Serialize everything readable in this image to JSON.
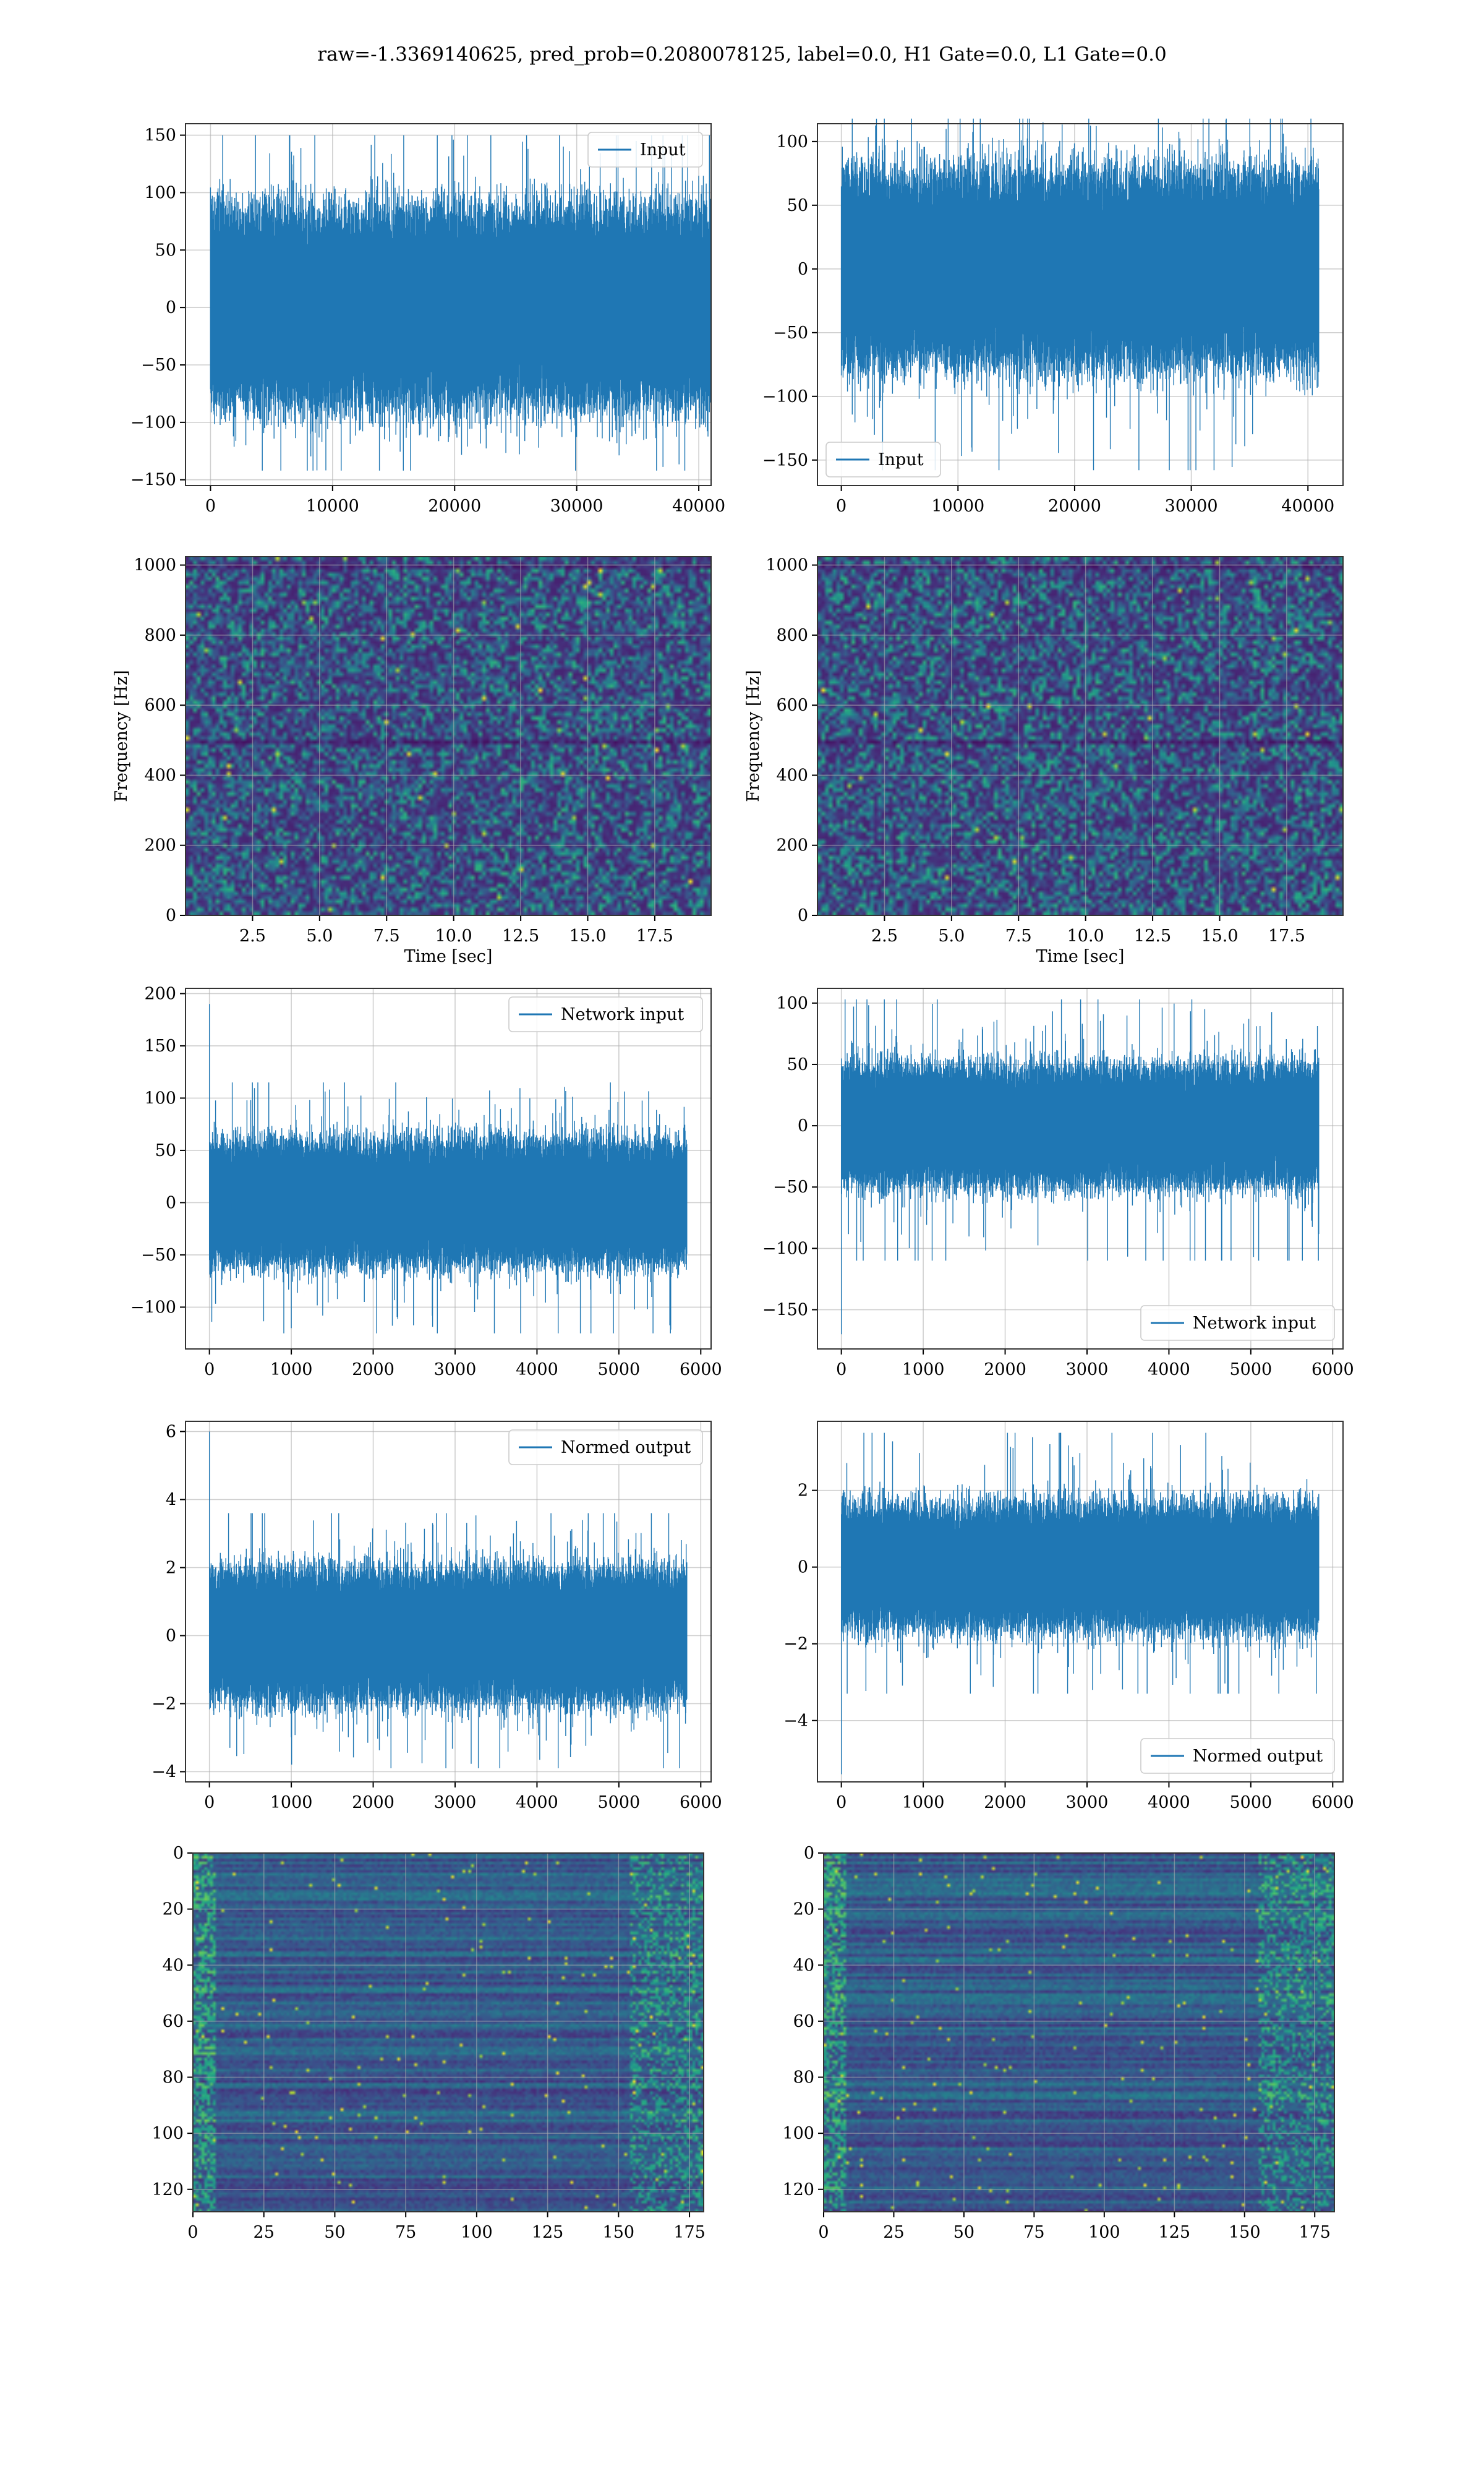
{
  "figure": {
    "title": "raw=-1.3369140625, pred_prob=0.2080078125, label=0.0, H1 Gate=0.0, L1 Gate=0.0",
    "colors": {
      "line": "#1f77b4",
      "grid": "#b0b0b0",
      "viridis_low": "#440154",
      "viridis_mid": "#21918c",
      "viridis_high": "#fde725"
    }
  },
  "chart_data": [
    {
      "type": "line",
      "id": "h1-input",
      "legend": "Input",
      "legend_loc": "upper right",
      "grid": true,
      "n": 40960,
      "xlim": [
        -2048,
        41008
      ],
      "ylim": [
        -155,
        160
      ],
      "xticks": [
        0,
        10000,
        20000,
        30000,
        40000
      ],
      "yticks": [
        -150,
        -100,
        -50,
        0,
        50,
        100,
        150
      ],
      "envelope": {
        "typical_low": -80,
        "typical_high": 80,
        "max": 150,
        "min": -142,
        "start_spike": null
      }
    },
    {
      "type": "line",
      "id": "l1-input",
      "legend": "Input",
      "legend_loc": "lower left",
      "grid": true,
      "n": 40960,
      "xlim": [
        -2048,
        43008
      ],
      "ylim": [
        -170,
        114
      ],
      "xticks": [
        0,
        10000,
        20000,
        30000,
        40000
      ],
      "yticks": [
        -150,
        -100,
        -50,
        0,
        50,
        100
      ],
      "envelope": {
        "typical_low": -70,
        "typical_high": 70,
        "max": 118,
        "min": -158,
        "start_spike": null
      }
    },
    {
      "type": "heatmap",
      "id": "h1-spectrogram",
      "xlabel": "Time [sec]",
      "ylabel": "Frequency [Hz]",
      "colormap": "viridis",
      "grid": true,
      "xlim": [
        0,
        19.6
      ],
      "ylim": [
        0,
        1024
      ],
      "xticks": [
        2.5,
        5.0,
        7.5,
        10.0,
        12.5,
        15.0,
        17.5
      ],
      "yticks": [
        0,
        200,
        400,
        600,
        800,
        1000
      ],
      "grid_shape": [
        90,
        140
      ],
      "seed": 11
    },
    {
      "type": "heatmap",
      "id": "l1-spectrogram",
      "xlabel": "Time [sec]",
      "ylabel": "Frequency [Hz]",
      "colormap": "viridis",
      "grid": true,
      "xlim": [
        0,
        19.6
      ],
      "ylim": [
        0,
        1024
      ],
      "xticks": [
        2.5,
        5.0,
        7.5,
        10.0,
        12.5,
        15.0,
        17.5
      ],
      "yticks": [
        0,
        200,
        400,
        600,
        800,
        1000
      ],
      "grid_shape": [
        90,
        140
      ],
      "seed": 23
    },
    {
      "type": "line",
      "id": "h1-network-input",
      "legend": "Network input",
      "legend_loc": "upper right",
      "grid": true,
      "n": 5834,
      "xlim": [
        -292,
        6126
      ],
      "ylim": [
        -140,
        205
      ],
      "xticks": [
        0,
        1000,
        2000,
        3000,
        4000,
        5000,
        6000
      ],
      "yticks": [
        -100,
        -50,
        0,
        50,
        100,
        150,
        200
      ],
      "envelope": {
        "typical_low": -55,
        "typical_high": 55,
        "max": 115,
        "min": -125,
        "start_spike": 190
      }
    },
    {
      "type": "line",
      "id": "l1-network-input",
      "legend": "Network input",
      "legend_loc": "lower right",
      "grid": true,
      "n": 5834,
      "xlim": [
        -292,
        6126
      ],
      "ylim": [
        -182,
        112
      ],
      "xticks": [
        0,
        1000,
        2000,
        3000,
        4000,
        5000,
        6000
      ],
      "yticks": [
        -150,
        -100,
        -50,
        0,
        50,
        100
      ],
      "envelope": {
        "typical_low": -45,
        "typical_high": 45,
        "max": 103,
        "min": -110,
        "start_spike": -170
      }
    },
    {
      "type": "line",
      "id": "h1-normed-output",
      "legend": "Normed output",
      "legend_loc": "upper right",
      "grid": true,
      "n": 5834,
      "xlim": [
        -292,
        6126
      ],
      "ylim": [
        -4.3,
        6.3
      ],
      "xticks": [
        0,
        1000,
        2000,
        3000,
        4000,
        5000,
        6000
      ],
      "yticks": [
        -4,
        -2,
        0,
        2,
        4,
        6
      ],
      "envelope": {
        "typical_low": -1.8,
        "typical_high": 1.8,
        "max": 3.6,
        "min": -3.9,
        "start_spike": 6.0
      }
    },
    {
      "type": "line",
      "id": "l1-normed-output",
      "legend": "Normed output",
      "legend_loc": "lower right",
      "grid": true,
      "n": 5834,
      "xlim": [
        -292,
        6126
      ],
      "ylim": [
        -5.6,
        3.8
      ],
      "xticks": [
        0,
        1000,
        2000,
        3000,
        4000,
        5000,
        6000
      ],
      "yticks": [
        -4,
        -2,
        0,
        2
      ],
      "envelope": {
        "typical_low": -1.5,
        "typical_high": 1.5,
        "max": 3.5,
        "min": -3.3,
        "start_spike": -5.4
      }
    },
    {
      "type": "heatmap",
      "id": "h1-feature-map",
      "colormap": "viridis",
      "grid": true,
      "xlim": [
        0,
        180
      ],
      "ylim": [
        128,
        0
      ],
      "xticks": [
        0,
        25,
        50,
        75,
        100,
        125,
        150,
        175
      ],
      "yticks": [
        0,
        20,
        40,
        60,
        80,
        100,
        120
      ],
      "grid_shape": [
        128,
        180
      ],
      "seed": 37
    },
    {
      "type": "heatmap",
      "id": "l1-feature-map",
      "colormap": "viridis",
      "grid": true,
      "xlim": [
        0,
        182
      ],
      "ylim": [
        128,
        0
      ],
      "xticks": [
        0,
        25,
        50,
        75,
        100,
        125,
        150,
        175
      ],
      "yticks": [
        0,
        20,
        40,
        60,
        80,
        100,
        120
      ],
      "grid_shape": [
        128,
        182
      ],
      "seed": 53
    }
  ]
}
